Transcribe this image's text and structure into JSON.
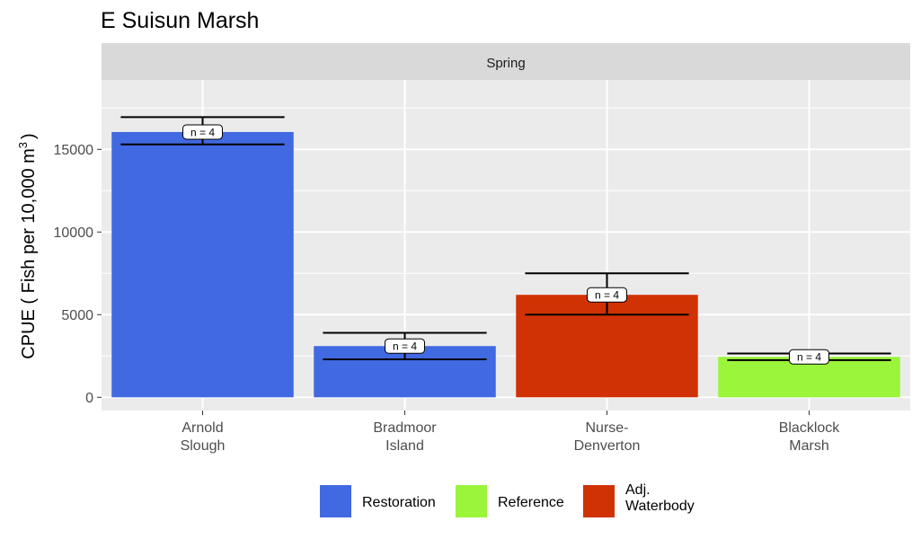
{
  "chart_data": {
    "type": "bar",
    "title": "E Suisun Marsh",
    "facet": "Spring",
    "ylabel": "CPUE ( Fish per 10,000 m",
    "ylabel_sup": "3",
    "ylabel_end": ")",
    "xlabel": "",
    "ylim": [
      -800,
      19200
    ],
    "yticks": [
      0,
      5000,
      10000,
      15000
    ],
    "ytick_labels": [
      "0",
      "5000",
      "10000",
      "15000"
    ],
    "grid": true,
    "legend_position": "bottom",
    "categories": [
      {
        "lines": [
          "Arnold",
          "Slough"
        ],
        "value": 16050,
        "err_low": 15300,
        "err_high": 16950,
        "group": "Restoration",
        "n_label": "n =  4"
      },
      {
        "lines": [
          "Bradmoor",
          "Island"
        ],
        "value": 3100,
        "err_low": 2300,
        "err_high": 3900,
        "group": "Restoration",
        "n_label": "n =  4"
      },
      {
        "lines": [
          "Nurse-",
          "Denverton"
        ],
        "value": 6200,
        "err_low": 5000,
        "err_high": 7500,
        "group": "Adj. Waterbody",
        "n_label": "n =  4"
      },
      {
        "lines": [
          "Blacklock",
          "Marsh"
        ],
        "value": 2450,
        "err_low": 2250,
        "err_high": 2650,
        "group": "Reference",
        "n_label": "n =  4"
      }
    ],
    "legend": [
      {
        "key": "Restoration",
        "lines": [
          "Restoration"
        ],
        "color": "#4169E1"
      },
      {
        "key": "Reference",
        "lines": [
          "Reference"
        ],
        "color": "#9AF53B"
      },
      {
        "key": "Adj. Waterbody",
        "lines": [
          "Adj.",
          "Waterbody"
        ],
        "color": "#D13204"
      }
    ],
    "colors": {
      "panel_bg": "#EBEBEB",
      "strip_bg": "#D9D9D9",
      "grid": "#FFFFFF",
      "tick": "#333333"
    }
  }
}
